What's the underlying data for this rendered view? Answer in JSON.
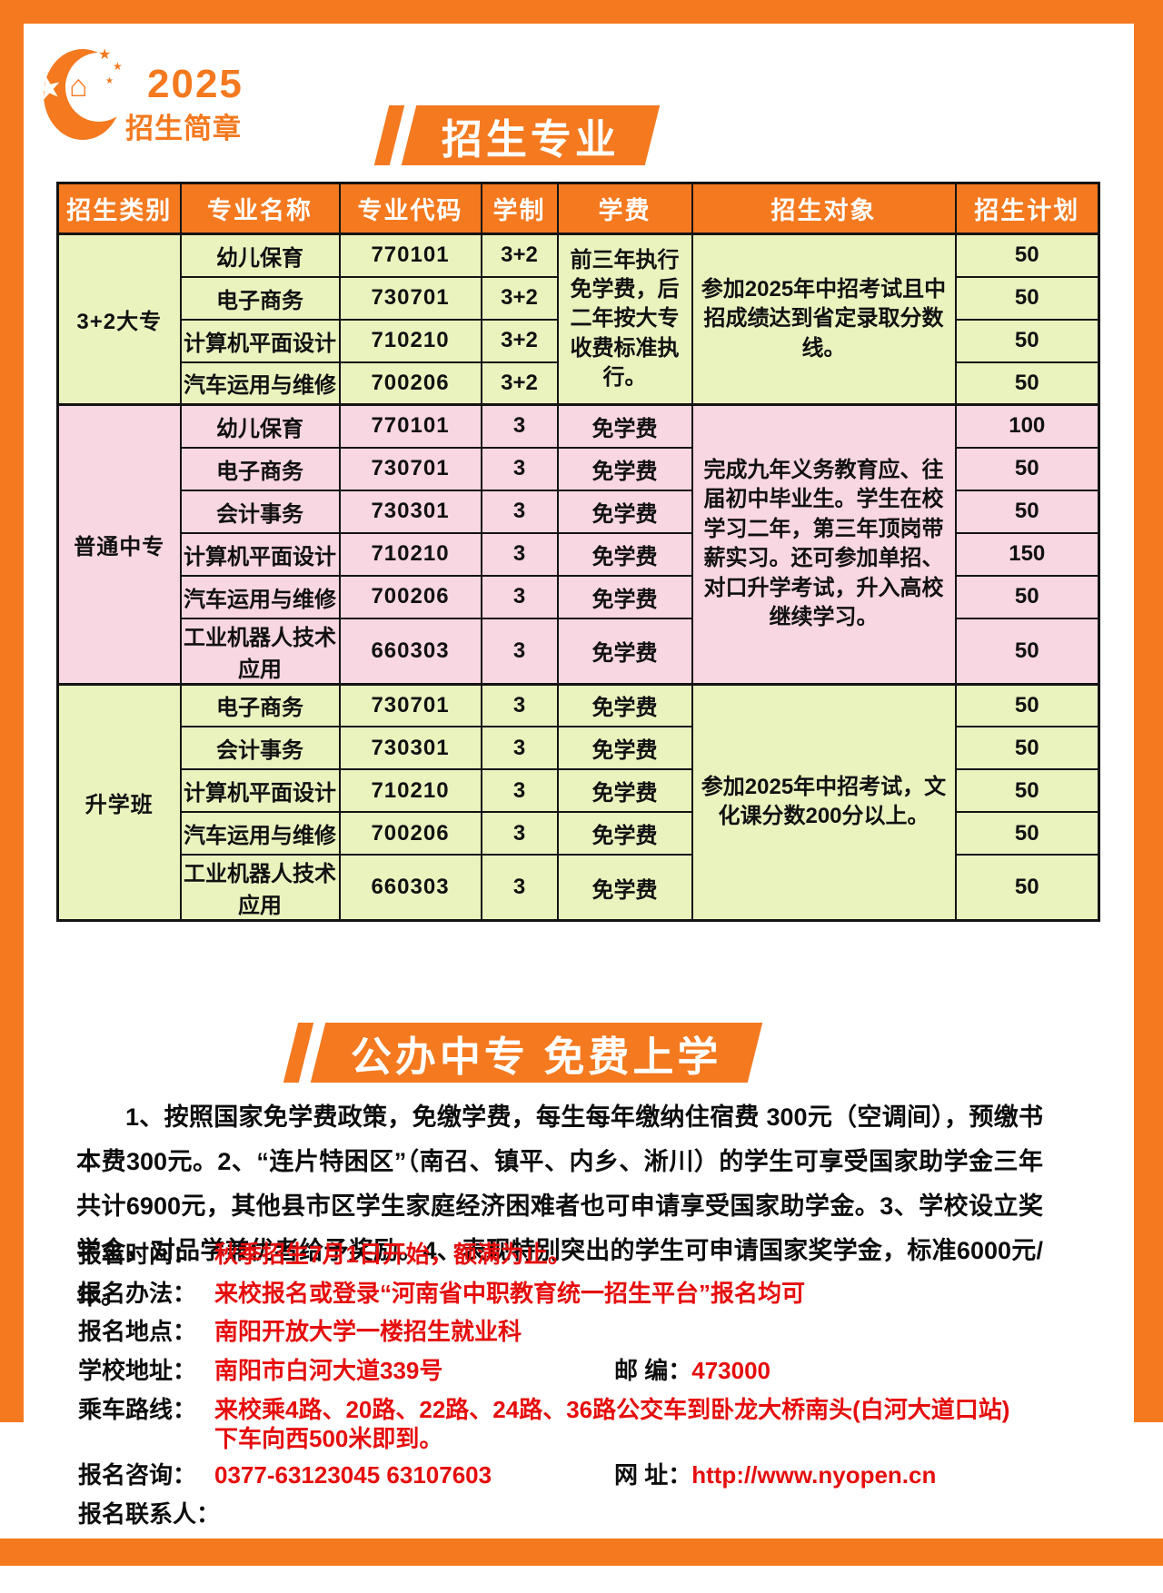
{
  "logo": {
    "year": "2025",
    "title": "招生简章"
  },
  "banners": {
    "majors": "招生专业",
    "free": "公办中专 免费上学"
  },
  "accent_colors": {
    "orange": "#F4791F",
    "red": "#E60D0D",
    "green_row": "#EAF3BE",
    "pink_row": "#F8D6E2"
  },
  "table": {
    "headers": [
      "招生类别",
      "专业名称",
      "专业代码",
      "学制",
      "学费",
      "招生对象",
      "招生计划"
    ],
    "groups": [
      {
        "category": "3+2大专",
        "fee": "前三年执行免学费，后二年按大专收费标准执行。",
        "target": "参加2025年中招考试且中招成绩达到省定录取分数线。",
        "rows": [
          {
            "major": "幼儿保育",
            "code": "770101",
            "duration": "3+2",
            "plan": "50"
          },
          {
            "major": "电子商务",
            "code": "730701",
            "duration": "3+2",
            "plan": "50"
          },
          {
            "major": "计算机平面设计",
            "code": "710210",
            "duration": "3+2",
            "plan": "50"
          },
          {
            "major": "汽车运用与维修",
            "code": "700206",
            "duration": "3+2",
            "plan": "50"
          }
        ]
      },
      {
        "category": "普通中专",
        "target": "完成九年义务教育应、往届初中毕业生。学生在校学习二年，第三年顶岗带薪实习。还可参加单招、对口升学考试，升入高校继续学习。",
        "rows": [
          {
            "major": "幼儿保育",
            "code": "770101",
            "duration": "3",
            "fee": "免学费",
            "plan": "100"
          },
          {
            "major": "电子商务",
            "code": "730701",
            "duration": "3",
            "fee": "免学费",
            "plan": "50"
          },
          {
            "major": "会计事务",
            "code": "730301",
            "duration": "3",
            "fee": "免学费",
            "plan": "50"
          },
          {
            "major": "计算机平面设计",
            "code": "710210",
            "duration": "3",
            "fee": "免学费",
            "plan": "150"
          },
          {
            "major": "汽车运用与维修",
            "code": "700206",
            "duration": "3",
            "fee": "免学费",
            "plan": "50"
          },
          {
            "major": "工业机器人技术应用",
            "code": "660303",
            "duration": "3",
            "fee": "免学费",
            "plan": "50"
          }
        ]
      },
      {
        "category": "升学班",
        "target": "参加2025年中招考试，文化课分数200分以上。",
        "rows": [
          {
            "major": "电子商务",
            "code": "730701",
            "duration": "3",
            "fee": "免学费",
            "plan": "50"
          },
          {
            "major": "会计事务",
            "code": "730301",
            "duration": "3",
            "fee": "免学费",
            "plan": "50"
          },
          {
            "major": "计算机平面设计",
            "code": "710210",
            "duration": "3",
            "fee": "免学费",
            "plan": "50"
          },
          {
            "major": "汽车运用与维修",
            "code": "700206",
            "duration": "3",
            "fee": "免学费",
            "plan": "50"
          },
          {
            "major": "工业机器人技术应用",
            "code": "660303",
            "duration": "3",
            "fee": "免学费",
            "plan": "50"
          }
        ]
      }
    ]
  },
  "policy_text": "1、按照国家免学费政策，免缴学费，每生每年缴纳住宿费 300元（空调间），预缴书本费300元。2、“连片特困区”（南召、镇平、内乡、淅川）的学生可享受国家助学金三年共计6900元，其他县市区学生家庭经济困难者也可申请享受国家助学金。3、学校设立奖学金，对品学兼优者给予奖励。4、表现特别突出的学生可申请国家奖学金，标准6000元/年。",
  "contact": {
    "time_label": "报名时间：",
    "time_value": "秋季招生7月1日开始，额满为止。",
    "method_label": "报名办法：",
    "method_value": "来校报名或登录“河南省中职教育统一招生平台”报名均可",
    "place_label": "报名地点：",
    "place_value": "南阳开放大学一楼招生就业科",
    "addr_label": "学校地址：",
    "addr_value": "南阳市白河大道339号",
    "zip_label": "邮 编：",
    "zip_value": "473000",
    "bus_label": "乘车路线：",
    "bus_value": "来校乘4路、20路、22路、24路、36路公交车到卧龙大桥南头(白河大道口站)下车向西500米即到。",
    "phone_label": "报名咨询：",
    "phone_value": "0377-63123045  63107603",
    "web_label": "网 址：",
    "web_value": "http://www.nyopen.cn",
    "person_label": "报名联系人："
  }
}
